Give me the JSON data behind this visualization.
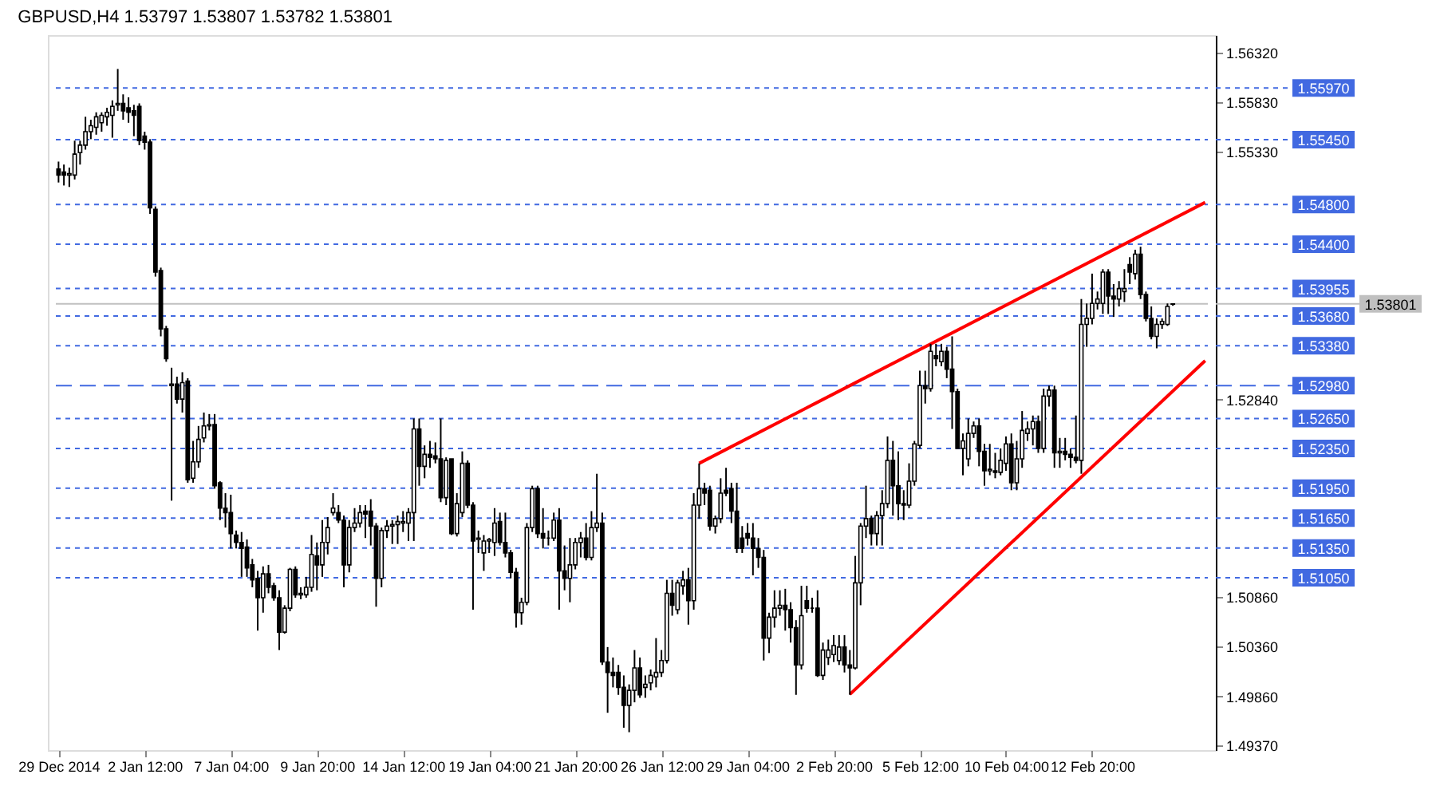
{
  "chart_data": {
    "type": "candlestick",
    "title": "GBPUSD,H4 1.53797 1.53807 1.53782 1.53801",
    "categories": [
      "29 Dec 2014",
      null,
      null,
      null,
      null,
      null,
      null,
      null,
      null,
      null,
      null,
      null,
      null,
      null,
      null,
      null,
      "2 Jan 12:00",
      null,
      null,
      null,
      null,
      null,
      null,
      null,
      null,
      null,
      null,
      null,
      null,
      null,
      null,
      null,
      "7 Jan 04:00",
      null,
      null,
      null,
      null,
      null,
      null,
      null,
      null,
      null,
      null,
      null,
      null,
      null,
      null,
      null,
      "9 Jan 20:00",
      null,
      null,
      null,
      null,
      null,
      null,
      null,
      null,
      null,
      null,
      null,
      null,
      null,
      null,
      null,
      "14 Jan 12:00",
      null,
      null,
      null,
      null,
      null,
      null,
      null,
      null,
      null,
      null,
      null,
      null,
      null,
      null,
      null,
      "19 Jan 04:00",
      null,
      null,
      null,
      null,
      null,
      null,
      null,
      null,
      null,
      null,
      null,
      null,
      null,
      null,
      null,
      "21 Jan 20:00",
      null,
      null,
      null,
      null,
      null,
      null,
      null,
      null,
      null,
      null,
      null,
      null,
      null,
      null,
      null,
      "26 Jan 12:00",
      null,
      null,
      null,
      null,
      null,
      null,
      null,
      null,
      null,
      null,
      null,
      null,
      null,
      null,
      null,
      "29 Jan 04:00",
      null,
      null,
      null,
      null,
      null,
      null,
      null,
      null,
      null,
      null,
      null,
      null,
      null,
      null,
      null,
      "2 Feb 20:00",
      null,
      null,
      null,
      null,
      null,
      null,
      null,
      null,
      null,
      null,
      null,
      null,
      null,
      null,
      null,
      "5 Feb 12:00",
      null,
      null,
      null,
      null,
      null,
      null,
      null,
      null,
      null,
      null,
      null,
      null,
      null,
      null,
      null,
      "10 Feb 04:00",
      null,
      null,
      null,
      null,
      null,
      null,
      null,
      null,
      null,
      null,
      null,
      null,
      null,
      null,
      null,
      "12 Feb 20:00",
      null,
      null,
      null,
      null,
      null,
      null,
      null,
      null,
      null,
      null,
      null,
      null,
      null,
      null,
      null,
      null,
      null,
      null,
      null,
      null,
      null
    ],
    "ohlc": [
      [
        1.55155,
        1.5523,
        1.5502,
        1.55095
      ],
      [
        1.55125,
        1.552,
        1.5499,
        1.55095
      ],
      [
        1.55095,
        1.5517,
        1.54975,
        1.5511
      ],
      [
        1.55095,
        1.5544,
        1.5505,
        1.55305
      ],
      [
        1.5532,
        1.5544,
        1.552,
        1.55395
      ],
      [
        1.55395,
        1.5568,
        1.5535,
        1.5553
      ],
      [
        1.5553,
        1.5565,
        1.55455,
        1.5559
      ],
      [
        1.55575,
        1.55725,
        1.555,
        1.5568
      ],
      [
        1.5562,
        1.55725,
        1.5553,
        1.55695
      ],
      [
        1.5568,
        1.5577,
        1.5559,
        1.55725
      ],
      [
        1.55695,
        1.55845,
        1.5547,
        1.55785
      ],
      [
        1.558,
        1.5616,
        1.5574,
        1.55815
      ],
      [
        1.55815,
        1.55905,
        1.5565,
        1.5574
      ],
      [
        1.5577,
        1.55875,
        1.5562,
        1.55725
      ],
      [
        1.5574,
        1.558,
        1.55485,
        1.55695
      ],
      [
        1.55785,
        1.55815,
        1.55395,
        1.5544
      ],
      [
        1.55485,
        1.5553,
        1.5535,
        1.55425
      ],
      [
        1.55425,
        1.55455,
        1.54705,
        1.54765
      ],
      [
        1.5475,
        1.5478,
        1.54075,
        1.5412
      ],
      [
        1.54135,
        1.54165,
        1.53475,
        1.5355
      ],
      [
        1.5355,
        1.5358,
        1.5322,
        1.5325
      ],
      [
        1.5298,
        1.5316,
        1.51825,
        1.52995
      ],
      [
        1.52995,
        1.5307,
        1.528,
        1.52845
      ],
      [
        1.52845,
        1.53115,
        1.5271,
        1.5301
      ],
      [
        1.53025,
        1.53055,
        1.52005,
        1.52035
      ],
      [
        1.5205,
        1.52425,
        1.52005,
        1.52215
      ],
      [
        1.52215,
        1.52575,
        1.52155,
        1.5244
      ],
      [
        1.52455,
        1.5271,
        1.5241,
        1.52575
      ],
      [
        1.52575,
        1.52695,
        1.5253,
        1.5259
      ],
      [
        1.5259,
        1.52695,
        1.51945,
        1.51975
      ],
      [
        1.52005,
        1.5202,
        1.5163,
        1.5175
      ],
      [
        1.5175,
        1.519,
        1.51555,
        1.51705
      ],
      [
        1.51705,
        1.51885,
        1.51345,
        1.51495
      ],
      [
        1.5148,
        1.51525,
        1.51345,
        1.51405
      ],
      [
        1.51405,
        1.5151,
        1.5106,
        1.51345
      ],
      [
        1.5136,
        1.51435,
        1.5106,
        1.5115
      ],
      [
        1.5118,
        1.5124,
        1.50955,
        1.5103
      ],
      [
        1.51045,
        1.5112,
        1.5052,
        1.5085
      ],
      [
        1.5085,
        1.51165,
        1.507,
        1.5109
      ],
      [
        1.5109,
        1.5118,
        1.50895,
        1.50955
      ],
      [
        1.5097,
        1.51,
        1.5082,
        1.5085
      ],
      [
        1.5085,
        1.50925,
        1.50325,
        1.50505
      ],
      [
        1.50505,
        1.50775,
        1.5049,
        1.50745
      ],
      [
        1.50745,
        1.5115,
        1.50715,
        1.51135
      ],
      [
        1.51135,
        1.51165,
        1.5085,
        1.5088
      ],
      [
        1.5088,
        1.50955,
        1.50835,
        1.50895
      ],
      [
        1.5088,
        1.5106,
        1.5085,
        1.50955
      ],
      [
        1.50955,
        1.5148,
        1.5091,
        1.51285
      ],
      [
        1.5127,
        1.51405,
        1.50925,
        1.5118
      ],
      [
        1.5118,
        1.5163,
        1.5106,
        1.51405
      ],
      [
        1.51405,
        1.5166,
        1.51285,
        1.51555
      ],
      [
        1.51705,
        1.519,
        1.51675,
        1.5175
      ],
      [
        1.51705,
        1.5178,
        1.516,
        1.5163
      ],
      [
        1.5163,
        1.51675,
        1.50955,
        1.5118
      ],
      [
        1.5118,
        1.5163,
        1.51105,
        1.51555
      ],
      [
        1.51555,
        1.5175,
        1.5151,
        1.516
      ],
      [
        1.516,
        1.5178,
        1.51555,
        1.51705
      ],
      [
        1.5172,
        1.5178,
        1.5145,
        1.5169
      ],
      [
        1.5172,
        1.5184,
        1.51375,
        1.5157
      ],
      [
        1.5157,
        1.516,
        1.5076,
        1.51045
      ],
      [
        1.51045,
        1.51555,
        1.50955,
        1.51525
      ],
      [
        1.51525,
        1.5163,
        1.5145,
        1.5157
      ],
      [
        1.5157,
        1.5163,
        1.5139,
        1.51585
      ],
      [
        1.51585,
        1.51675,
        1.5139,
        1.51615
      ],
      [
        1.516,
        1.5172,
        1.5151,
        1.51615
      ],
      [
        1.516,
        1.5175,
        1.5142,
        1.51705
      ],
      [
        1.51705,
        1.5265,
        1.5142,
        1.52545
      ],
      [
        1.52545,
        1.5265,
        1.51975,
        1.5217
      ],
      [
        1.5217,
        1.5238,
        1.5205,
        1.5229
      ],
      [
        1.5229,
        1.52425,
        1.52155,
        1.5226
      ],
      [
        1.52275,
        1.5241,
        1.522,
        1.52245
      ],
      [
        1.52245,
        1.5265,
        1.5181,
        1.51855
      ],
      [
        1.51855,
        1.5226,
        1.5178,
        1.5223
      ],
      [
        1.52245,
        1.52245,
        1.5148,
        1.51495
      ],
      [
        1.51495,
        1.519,
        1.51465,
        1.51795
      ],
      [
        1.51705,
        1.5232,
        1.5166,
        1.522
      ],
      [
        1.522,
        1.5223,
        1.5175,
        1.5178
      ],
      [
        1.5178,
        1.5181,
        1.5073,
        1.5142
      ],
      [
        1.51435,
        1.51525,
        1.513,
        1.5145
      ],
      [
        1.513,
        1.5148,
        1.5112,
        1.5142
      ],
      [
        1.5142,
        1.5145,
        1.513,
        1.51435
      ],
      [
        1.51405,
        1.5175,
        1.5127,
        1.516
      ],
      [
        1.51615,
        1.51705,
        1.51375,
        1.51405
      ],
      [
        1.51405,
        1.51705,
        1.51255,
        1.513
      ],
      [
        1.513,
        1.5133,
        1.51045,
        1.51105
      ],
      [
        1.51105,
        1.5115,
        1.5055,
        1.507
      ],
      [
        1.507,
        1.5085,
        1.5058,
        1.50805
      ],
      [
        1.50805,
        1.516,
        1.50775,
        1.51555
      ],
      [
        1.51555,
        1.51975,
        1.5151,
        1.51945
      ],
      [
        1.51945,
        1.51975,
        1.5145,
        1.51495
      ],
      [
        1.51495,
        1.5175,
        1.51345,
        1.5145
      ],
      [
        1.5145,
        1.51525,
        1.51375,
        1.5145
      ],
      [
        1.5145,
        1.51705,
        1.5142,
        1.5163
      ],
      [
        1.5163,
        1.5175,
        1.5073,
        1.5112
      ],
      [
        1.5112,
        1.51375,
        1.50925,
        1.51045
      ],
      [
        1.51045,
        1.5145,
        1.50805,
        1.5118
      ],
      [
        1.5118,
        1.5145,
        1.51135,
        1.51405
      ],
      [
        1.51405,
        1.5151,
        1.51255,
        1.5145
      ],
      [
        1.5145,
        1.516,
        1.51225,
        1.51255
      ],
      [
        1.51255,
        1.5172,
        1.51225,
        1.51555
      ],
      [
        1.51555,
        1.52095,
        1.5151,
        1.516
      ],
      [
        1.516,
        1.51705,
        1.50175,
        1.50205
      ],
      [
        1.50205,
        1.50355,
        1.49695,
        1.501
      ],
      [
        1.501,
        1.5025,
        1.4995,
        1.5007
      ],
      [
        1.501,
        1.50175,
        1.49875,
        1.4995
      ],
      [
        1.4995,
        1.5007,
        1.49545,
        1.4977
      ],
      [
        1.4977,
        1.4998,
        1.495,
        1.4992
      ],
      [
        1.4992,
        1.50325,
        1.498,
        1.50145
      ],
      [
        1.50145,
        1.5025,
        1.49845,
        1.49875
      ],
      [
        1.4995,
        1.5007,
        1.49845,
        1.4998
      ],
      [
        1.49995,
        1.5013,
        1.4992,
        1.5007
      ],
      [
        1.50055,
        1.50445,
        1.4995,
        1.501
      ],
      [
        1.501,
        1.50325,
        1.50055,
        1.5022
      ],
      [
        1.5022,
        1.5103,
        1.5019,
        1.50895
      ],
      [
        1.50895,
        1.5103,
        1.5067,
        1.50775
      ],
      [
        1.5073,
        1.5103,
        1.50685,
        1.51
      ],
      [
        1.5097,
        1.5112,
        1.5088,
        1.5103
      ],
      [
        1.5103,
        1.5115,
        1.5058,
        1.5082
      ],
      [
        1.5082,
        1.519,
        1.5073,
        1.5178
      ],
      [
        1.5178,
        1.522,
        1.51645,
        1.51945
      ],
      [
        1.51945,
        1.52005,
        1.5178,
        1.519
      ],
      [
        1.5193,
        1.51975,
        1.51525,
        1.5157
      ],
      [
        1.5157,
        1.51675,
        1.51495,
        1.51645
      ],
      [
        1.51645,
        1.5205,
        1.516,
        1.519
      ],
      [
        1.5193,
        1.52155,
        1.5187,
        1.519
      ],
      [
        1.51945,
        1.52005,
        1.516,
        1.5172
      ],
      [
        1.5172,
        1.52005,
        1.513,
        1.51345
      ],
      [
        1.5145,
        1.5157,
        1.513,
        1.51345
      ],
      [
        1.51495,
        1.516,
        1.51375,
        1.5145
      ],
      [
        1.5145,
        1.516,
        1.51075,
        1.51345
      ],
      [
        1.51345,
        1.5145,
        1.5115,
        1.51255
      ],
      [
        1.51255,
        1.5133,
        1.5022,
        1.50445
      ],
      [
        1.50445,
        1.507,
        1.50295,
        1.50655
      ],
      [
        1.50655,
        1.50925,
        1.5055,
        1.50745
      ],
      [
        1.50745,
        1.50925,
        1.5067,
        1.50775
      ],
      [
        1.50775,
        1.5094,
        1.5052,
        1.5073
      ],
      [
        1.5073,
        1.50805,
        1.504,
        1.5055
      ],
      [
        1.5055,
        1.50625,
        1.49875,
        1.50175
      ],
      [
        1.50175,
        1.5097,
        1.5013,
        1.5067
      ],
      [
        1.5082,
        1.5097,
        1.507,
        1.50745
      ],
      [
        1.50745,
        1.5085,
        1.507,
        1.50745
      ],
      [
        1.50745,
        1.50925,
        1.50055,
        1.5007
      ],
      [
        1.5007,
        1.504,
        1.50025,
        1.50325
      ],
      [
        1.5025,
        1.5043,
        1.50175,
        1.50325
      ],
      [
        1.5028,
        1.50475,
        1.50205,
        1.5037
      ],
      [
        1.5022,
        1.50475,
        1.50175,
        1.50355
      ],
      [
        1.50355,
        1.50475,
        1.501,
        1.50175
      ],
      [
        1.50175,
        1.50325,
        1.49875,
        1.50145
      ],
      [
        1.50145,
        1.5127,
        1.5013,
        1.51
      ],
      [
        1.51,
        1.516,
        1.50775,
        1.5157
      ],
      [
        1.5157,
        1.51975,
        1.5145,
        1.51645
      ],
      [
        1.51645,
        1.51675,
        1.51375,
        1.51495
      ],
      [
        1.51495,
        1.5172,
        1.51375,
        1.51675
      ],
      [
        1.51675,
        1.5193,
        1.51375,
        1.51795
      ],
      [
        1.51795,
        1.5247,
        1.5175,
        1.5223
      ],
      [
        1.5223,
        1.52425,
        1.51675,
        1.51975
      ],
      [
        1.51975,
        1.5232,
        1.5163,
        1.51795
      ],
      [
        1.51795,
        1.5193,
        1.5163,
        1.5178
      ],
      [
        1.5178,
        1.522,
        1.5175,
        1.5202
      ],
      [
        1.5202,
        1.52425,
        1.51975,
        1.52395
      ],
      [
        1.5238,
        1.5313,
        1.5235,
        1.5298
      ],
      [
        1.5298,
        1.5313,
        1.528,
        1.5295
      ],
      [
        1.5295,
        1.534,
        1.5292,
        1.53325
      ],
      [
        1.5328,
        1.534,
        1.53175,
        1.5325
      ],
      [
        1.5322,
        1.534,
        1.53175,
        1.53325
      ],
      [
        1.53325,
        1.5337,
        1.53055,
        1.53145
      ],
      [
        1.53145,
        1.53475,
        1.52545,
        1.5292
      ],
      [
        1.5292,
        1.5295,
        1.5235,
        1.5235
      ],
      [
        1.5235,
        1.525,
        1.5208,
        1.52425
      ],
      [
        1.52245,
        1.5265,
        1.5217,
        1.525
      ],
      [
        1.525,
        1.5262,
        1.52455,
        1.52575
      ],
      [
        1.52575,
        1.5265,
        1.5217,
        1.5232
      ],
      [
        1.5232,
        1.52395,
        1.51975,
        1.52125
      ],
      [
        1.52125,
        1.52395,
        1.5208,
        1.5214
      ],
      [
        1.52125,
        1.52305,
        1.5205,
        1.5211
      ],
      [
        1.5211,
        1.5235,
        1.5208,
        1.5223
      ],
      [
        1.522,
        1.5247,
        1.52125,
        1.52395
      ],
      [
        1.52395,
        1.525,
        1.5193,
        1.52005
      ],
      [
        1.52005,
        1.52425,
        1.5193,
        1.52245
      ],
      [
        1.52245,
        1.52725,
        1.52155,
        1.5253
      ],
      [
        1.525,
        1.5262,
        1.52425,
        1.52545
      ],
      [
        1.52545,
        1.5268,
        1.5238,
        1.5262
      ],
      [
        1.5262,
        1.5268,
        1.52305,
        1.5235
      ],
      [
        1.5235,
        1.5295,
        1.52305,
        1.52875
      ],
      [
        1.52875,
        1.5298,
        1.5277,
        1.52935
      ],
      [
        1.52935,
        1.5298,
        1.52155,
        1.52305
      ],
      [
        1.52305,
        1.52455,
        1.52155,
        1.5232
      ],
      [
        1.5232,
        1.52455,
        1.5223,
        1.5229
      ],
      [
        1.5229,
        1.5235,
        1.52155,
        1.5226
      ],
      [
        1.5226,
        1.5268,
        1.522,
        1.5223
      ],
      [
        1.5223,
        1.5385,
        1.52095,
        1.53595
      ],
      [
        1.53595,
        1.53805,
        1.5337,
        1.53655
      ],
      [
        1.53655,
        1.54105,
        1.53595,
        1.53805
      ],
      [
        1.53805,
        1.53925,
        1.53745,
        1.5385
      ],
      [
        1.53805,
        1.5415,
        1.537,
        1.5412
      ],
      [
        1.5412,
        1.5415,
        1.537,
        1.5388
      ],
      [
        1.5388,
        1.54,
        1.5367,
        1.5385
      ],
      [
        1.5385,
        1.5403,
        1.53775,
        1.53955
      ],
      [
        1.53925,
        1.5415,
        1.5382,
        1.53955
      ],
      [
        1.54195,
        1.5427,
        1.54,
        1.5412
      ],
      [
        1.54105,
        1.54345,
        1.54045,
        1.543
      ],
      [
        1.543,
        1.54375,
        1.5385,
        1.53895
      ],
      [
        1.53895,
        1.53925,
        1.53625,
        1.53655
      ],
      [
        1.53655,
        1.53775,
        1.53445,
        1.53475
      ],
      [
        1.53475,
        1.53655,
        1.53355,
        1.53595
      ],
      [
        1.53595,
        1.53655,
        1.5355,
        1.53625
      ],
      [
        1.53595,
        1.53805,
        1.5358,
        1.53775
      ],
      [
        1.53797,
        1.53807,
        1.53782,
        1.53801
      ],
      null,
      null,
      null,
      null,
      null,
      null
    ],
    "series": [
      {
        "type": "line",
        "color": "#ff0000",
        "values": [
          null,
          null,
          null,
          null,
          null,
          null,
          null,
          null,
          null,
          null,
          null,
          null,
          null,
          null,
          null,
          null,
          null,
          null,
          null,
          null,
          null,
          null,
          null,
          null,
          null,
          null,
          null,
          null,
          null,
          null,
          null,
          null,
          null,
          null,
          null,
          null,
          null,
          null,
          null,
          null,
          null,
          null,
          null,
          null,
          null,
          null,
          null,
          null,
          null,
          null,
          null,
          null,
          null,
          null,
          null,
          null,
          null,
          null,
          null,
          null,
          null,
          null,
          null,
          null,
          null,
          null,
          null,
          null,
          null,
          null,
          null,
          null,
          null,
          null,
          null,
          null,
          null,
          null,
          null,
          null,
          null,
          null,
          null,
          null,
          null,
          null,
          null,
          null,
          null,
          null,
          null,
          null,
          null,
          null,
          null,
          null,
          null,
          null,
          null,
          null,
          null,
          null,
          null,
          null,
          null,
          null,
          null,
          null,
          null,
          null,
          null,
          null,
          null,
          null,
          null,
          null,
          null,
          null,
          null,
          1.522,
          null,
          null,
          null,
          null,
          null,
          null,
          null,
          null,
          null,
          null,
          null,
          null,
          null,
          null,
          null,
          null,
          null,
          null,
          null,
          null,
          null,
          null,
          null,
          null,
          null,
          null,
          null,
          null,
          null,
          null,
          null,
          null,
          null,
          null,
          null,
          null,
          null,
          null,
          null,
          null,
          null,
          null,
          null,
          null,
          null,
          null,
          null,
          null,
          null,
          null,
          null,
          null,
          null,
          null,
          null,
          null,
          null,
          null,
          null,
          null,
          null,
          null,
          null,
          null,
          null,
          null,
          null,
          null,
          null,
          null,
          null,
          null,
          null,
          null,
          null,
          null,
          null,
          null,
          null,
          null,
          null,
          null,
          null,
          null,
          null,
          null,
          null,
          null,
          null,
          null,
          null,
          null,
          null,
          1.5482
        ]
      },
      {
        "type": "line",
        "color": "#ff0000",
        "values": [
          null,
          null,
          null,
          null,
          null,
          null,
          null,
          null,
          null,
          null,
          null,
          null,
          null,
          null,
          null,
          null,
          null,
          null,
          null,
          null,
          null,
          null,
          null,
          null,
          null,
          null,
          null,
          null,
          null,
          null,
          null,
          null,
          null,
          null,
          null,
          null,
          null,
          null,
          null,
          null,
          null,
          null,
          null,
          null,
          null,
          null,
          null,
          null,
          null,
          null,
          null,
          null,
          null,
          null,
          null,
          null,
          null,
          null,
          null,
          null,
          null,
          null,
          null,
          null,
          null,
          null,
          null,
          null,
          null,
          null,
          null,
          null,
          null,
          null,
          null,
          null,
          null,
          null,
          null,
          null,
          null,
          null,
          null,
          null,
          null,
          null,
          null,
          null,
          null,
          null,
          null,
          null,
          null,
          null,
          null,
          null,
          null,
          null,
          null,
          null,
          null,
          null,
          null,
          null,
          null,
          null,
          null,
          null,
          null,
          null,
          null,
          null,
          null,
          null,
          null,
          null,
          null,
          null,
          null,
          null,
          null,
          null,
          null,
          null,
          null,
          null,
          null,
          null,
          null,
          null,
          null,
          null,
          null,
          null,
          null,
          null,
          null,
          null,
          null,
          null,
          null,
          null,
          null,
          null,
          null,
          null,
          null,
          1.4988,
          null,
          null,
          null,
          null,
          null,
          null,
          null,
          null,
          null,
          null,
          null,
          null,
          null,
          null,
          null,
          null,
          null,
          null,
          null,
          null,
          null,
          null,
          null,
          null,
          null,
          null,
          null,
          null,
          null,
          null,
          null,
          null,
          null,
          null,
          null,
          null,
          null,
          null,
          null,
          null,
          null,
          null,
          null,
          null,
          null,
          null,
          null,
          null,
          null,
          null,
          null,
          null,
          null,
          null,
          null,
          null,
          null,
          null,
          null,
          null,
          null,
          null,
          null,
          null,
          null,
          1.5323
        ]
      }
    ],
    "ylim": [
      1.4932,
      1.565
    ],
    "yticks": [
      {
        "value": 1.5632,
        "label": "1.56320"
      },
      {
        "value": 1.5583,
        "label": "1.55830"
      },
      {
        "value": 1.5533,
        "label": "1.55330"
      },
      {
        "value": 1.5284,
        "label": "1.52840"
      },
      {
        "value": 1.5086,
        "label": "1.50860"
      },
      {
        "value": 1.5036,
        "label": "1.50360"
      },
      {
        "value": 1.4986,
        "label": "1.49860"
      },
      {
        "value": 1.4937,
        "label": "1.49370"
      }
    ],
    "ref_lines": [
      {
        "axis": "y",
        "value": 1.5597,
        "label": "1.55970",
        "color": "#4169e1",
        "line_style": "dotted"
      },
      {
        "axis": "y",
        "value": 1.5545,
        "label": "1.55450",
        "color": "#4169e1",
        "line_style": "dotted"
      },
      {
        "axis": "y",
        "value": 1.548,
        "label": "1.54800",
        "color": "#4169e1",
        "line_style": "dotted"
      },
      {
        "axis": "y",
        "value": 1.544,
        "label": "1.54400",
        "color": "#4169e1",
        "line_style": "dotted"
      },
      {
        "axis": "y",
        "value": 1.53955,
        "label": "1.53955",
        "color": "#4169e1",
        "line_style": "dotted"
      },
      {
        "axis": "y",
        "value": 1.53801,
        "label": "1.53801",
        "color": "#c0c0c0",
        "line_style": "solid"
      },
      {
        "axis": "y",
        "value": 1.5368,
        "label": "1.53680",
        "color": "#4169e1",
        "line_style": "dotted"
      },
      {
        "axis": "y",
        "value": 1.5338,
        "label": "1.53380",
        "color": "#4169e1",
        "line_style": "dotted"
      },
      {
        "axis": "y",
        "value": 1.5298,
        "label": "1.52980",
        "color": "#4169e1",
        "line_style": "dashed"
      },
      {
        "axis": "y",
        "value": 1.5265,
        "label": "1.52650",
        "color": "#4169e1",
        "line_style": "dotted"
      },
      {
        "axis": "y",
        "value": 1.5235,
        "label": "1.52350",
        "color": "#4169e1",
        "line_style": "dotted"
      },
      {
        "axis": "y",
        "value": 1.5195,
        "label": "1.51950",
        "color": "#4169e1",
        "line_style": "dotted"
      },
      {
        "axis": "y",
        "value": 1.5165,
        "label": "1.51650",
        "color": "#4169e1",
        "line_style": "dotted"
      },
      {
        "axis": "y",
        "value": 1.5135,
        "label": "1.51350",
        "color": "#4169e1",
        "line_style": "dotted"
      },
      {
        "axis": "y",
        "value": 1.5105,
        "label": "1.51050",
        "color": "#4169e1",
        "line_style": "dotted"
      }
    ]
  }
}
